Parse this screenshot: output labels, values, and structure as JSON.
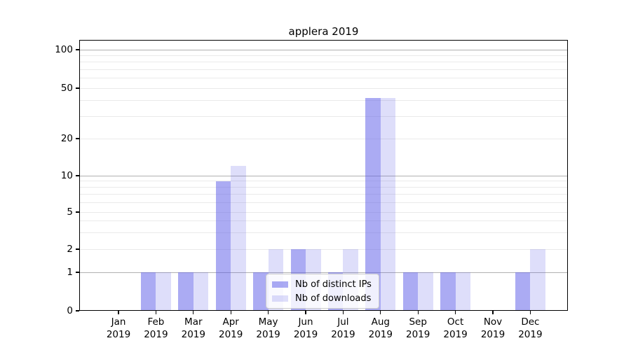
{
  "title": "applera 2019",
  "y_axis": {
    "tick_labels": [
      "0",
      "1",
      "2",
      "5",
      "10",
      "20",
      "50",
      "100"
    ]
  },
  "x_axis": {
    "months": [
      "Jan",
      "Feb",
      "Mar",
      "Apr",
      "May",
      "Jun",
      "Jul",
      "Aug",
      "Sep",
      "Oct",
      "Nov",
      "Dec"
    ],
    "year": "2019"
  },
  "legend": {
    "items": [
      {
        "label": "Nb of distinct IPs",
        "color": "rgba(88,88,232,0.5)"
      },
      {
        "label": "Nb of downloads",
        "color": "rgba(88,88,232,0.2)"
      }
    ]
  },
  "colors": {
    "bar_distinct_ips": "rgba(88,88,232,0.5)",
    "bar_downloads": "rgba(88,88,232,0.2)",
    "grid_major": "#b0b0b0",
    "grid_minor": "#eaeaea",
    "axis": "#000000"
  },
  "chart_data": {
    "type": "bar",
    "title": "applera 2019",
    "categories": [
      "Jan 2019",
      "Feb 2019",
      "Mar 2019",
      "Apr 2019",
      "May 2019",
      "Jun 2019",
      "Jul 2019",
      "Aug 2019",
      "Sep 2019",
      "Oct 2019",
      "Nov 2019",
      "Dec 2019"
    ],
    "series": [
      {
        "name": "Nb of distinct IPs",
        "values": [
          0,
          1,
          1,
          9,
          1,
          2,
          1,
          42,
          1,
          1,
          0,
          1
        ]
      },
      {
        "name": "Nb of downloads",
        "values": [
          0,
          1,
          1,
          12,
          2,
          2,
          2,
          42,
          1,
          1,
          0,
          2
        ]
      }
    ],
    "xlabel": "",
    "ylabel": "",
    "y_ticks": [
      0,
      1,
      2,
      5,
      10,
      20,
      50,
      100
    ],
    "yscale": "log-like with linear 0-1 segment",
    "ylim": [
      0,
      120
    ],
    "grid": true,
    "legend_position": "lower center"
  }
}
